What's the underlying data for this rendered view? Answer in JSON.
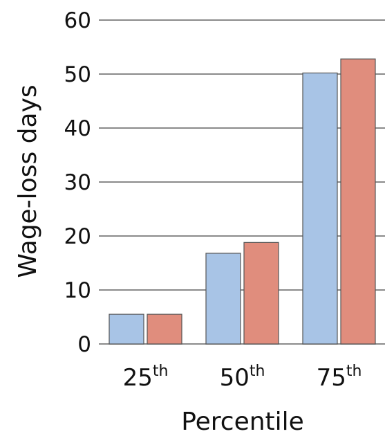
{
  "chart_data": {
    "type": "bar",
    "title": "",
    "xlabel": "Percentile",
    "ylabel": "Wage-loss days",
    "ylim": [
      0,
      60
    ],
    "yticks": [
      0,
      10,
      20,
      30,
      40,
      50,
      60
    ],
    "ytick_labels": [
      "0",
      "10",
      "20",
      "30",
      "40",
      "50",
      "60"
    ],
    "grid": true,
    "categories": [
      {
        "base": "25",
        "sup": "th"
      },
      {
        "base": "50",
        "sup": "th"
      },
      {
        "base": "75",
        "sup": "th"
      }
    ],
    "series": [
      {
        "color": "#a8c4e6",
        "values": [
          5.5,
          16.8,
          50.2
        ]
      },
      {
        "color": "#e08d7d",
        "values": [
          5.5,
          18.8,
          52.8
        ]
      }
    ],
    "colors": {
      "grid": "#8a8a8a",
      "bar_edge": "#555555",
      "text": "#111111"
    }
  }
}
